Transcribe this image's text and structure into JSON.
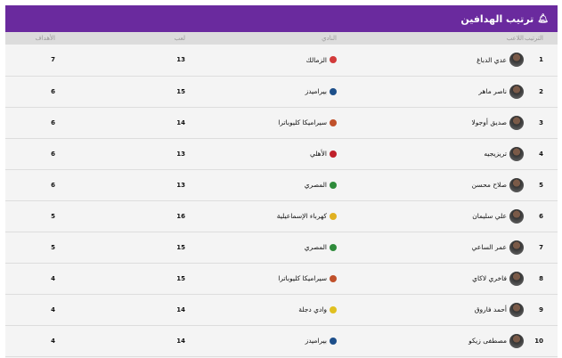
{
  "header": {
    "title": "ترتيب الهدافين",
    "icon": "award-icon"
  },
  "columns": {
    "rank": "الترتيب",
    "player": "اللاعب",
    "club": "النادي",
    "played": "لعب",
    "goals": "الأهداف"
  },
  "rows": [
    {
      "rank": "1",
      "player": "عدي الدباغ",
      "club": "الزمالك",
      "club_color": "#d23a3a",
      "played": "13",
      "goals": "7"
    },
    {
      "rank": "2",
      "player": "ناصر ماهر",
      "club": "بيراميدز",
      "club_color": "#1d4f8a",
      "played": "15",
      "goals": "6"
    },
    {
      "rank": "3",
      "player": "صديق أوجولا",
      "club": "سيراميكا كليوباترا",
      "club_color": "#c0502a",
      "played": "14",
      "goals": "6"
    },
    {
      "rank": "4",
      "player": "تريزيجيه",
      "club": "الأهلي",
      "club_color": "#c0202a",
      "played": "13",
      "goals": "6"
    },
    {
      "rank": "5",
      "player": "صلاح محسن",
      "club": "المصري",
      "club_color": "#2e8b3a",
      "played": "13",
      "goals": "6"
    },
    {
      "rank": "6",
      "player": "علي سليمان",
      "club": "كهرباء الإسماعيلية",
      "club_color": "#e0b020",
      "played": "16",
      "goals": "5"
    },
    {
      "rank": "7",
      "player": "عمر الساعي",
      "club": "المصري",
      "club_color": "#2e8b3a",
      "played": "15",
      "goals": "5"
    },
    {
      "rank": "8",
      "player": "فاخري لاكاي",
      "club": "سيراميكا كليوباترا",
      "club_color": "#c0502a",
      "played": "15",
      "goals": "4"
    },
    {
      "rank": "9",
      "player": "أحمد فاروق",
      "club": "وادي دجلة",
      "club_color": "#e0c020",
      "played": "14",
      "goals": "4"
    },
    {
      "rank": "10",
      "player": "مصطفى زيكو",
      "club": "بيراميدز",
      "club_color": "#1d4f8a",
      "played": "14",
      "goals": "4"
    }
  ]
}
